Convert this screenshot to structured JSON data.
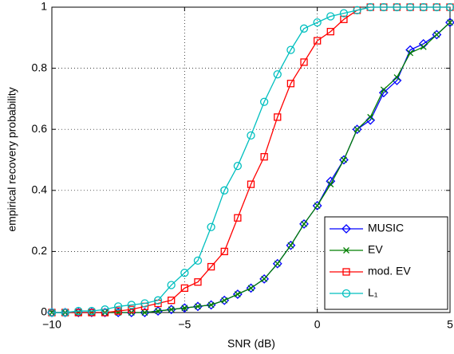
{
  "chart_data": {
    "type": "line",
    "xlabel": "SNR (dB)",
    "ylabel": "empirical recovery probability",
    "x": [
      -10,
      -9.5,
      -9,
      -8.5,
      -8,
      -7.5,
      -7,
      -6.5,
      -6,
      -5.5,
      -5,
      -4.5,
      -4,
      -3.5,
      -3,
      -2.5,
      -2,
      -1.5,
      -1,
      -0.5,
      0,
      0.5,
      1,
      1.5,
      2,
      2.5,
      3,
      3.5,
      4,
      4.5,
      5
    ],
    "series": [
      {
        "name": "MUSIC",
        "color": "#0000ff",
        "marker": "diamond",
        "values": [
          0,
          0,
          0,
          0,
          0,
          0,
          0,
          0,
          0.005,
          0.01,
          0.015,
          0.02,
          0.025,
          0.04,
          0.06,
          0.08,
          0.11,
          0.16,
          0.22,
          0.29,
          0.35,
          0.43,
          0.5,
          0.6,
          0.63,
          0.72,
          0.76,
          0.86,
          0.88,
          0.91,
          0.95
        ]
      },
      {
        "name": "EV",
        "color": "#007f00",
        "marker": "x",
        "values": [
          0,
          0,
          0,
          0,
          0,
          0,
          0,
          0,
          0.005,
          0.01,
          0.015,
          0.02,
          0.025,
          0.04,
          0.06,
          0.08,
          0.11,
          0.16,
          0.22,
          0.29,
          0.35,
          0.42,
          0.5,
          0.6,
          0.64,
          0.73,
          0.77,
          0.85,
          0.87,
          0.91,
          0.95
        ]
      },
      {
        "name": "mod. EV",
        "color": "#ff0000",
        "marker": "square",
        "values": [
          0,
          0,
          0,
          0,
          0,
          0.005,
          0.01,
          0.02,
          0.03,
          0.04,
          0.08,
          0.1,
          0.15,
          0.2,
          0.31,
          0.42,
          0.51,
          0.64,
          0.75,
          0.82,
          0.89,
          0.92,
          0.96,
          0.99,
          1,
          1,
          1,
          1,
          1,
          1,
          1
        ]
      },
      {
        "name": "L₁",
        "color": "#00bfbf",
        "marker": "circle",
        "values": [
          0,
          0,
          0.005,
          0.005,
          0.01,
          0.02,
          0.025,
          0.03,
          0.04,
          0.09,
          0.13,
          0.17,
          0.28,
          0.4,
          0.48,
          0.58,
          0.69,
          0.78,
          0.86,
          0.93,
          0.95,
          0.97,
          0.98,
          0.99,
          1,
          1,
          1,
          1,
          1,
          1,
          1
        ]
      }
    ],
    "xlim": [
      -10,
      5
    ],
    "ylim": [
      0,
      1
    ],
    "xticks": [
      {
        "value": -10,
        "label": "−10"
      },
      {
        "value": -5,
        "label": "−5"
      },
      0,
      5
    ],
    "yticks": [
      0,
      0.2,
      0.4,
      0.6,
      0.8,
      1
    ],
    "grid": true,
    "legend": "lower right"
  }
}
